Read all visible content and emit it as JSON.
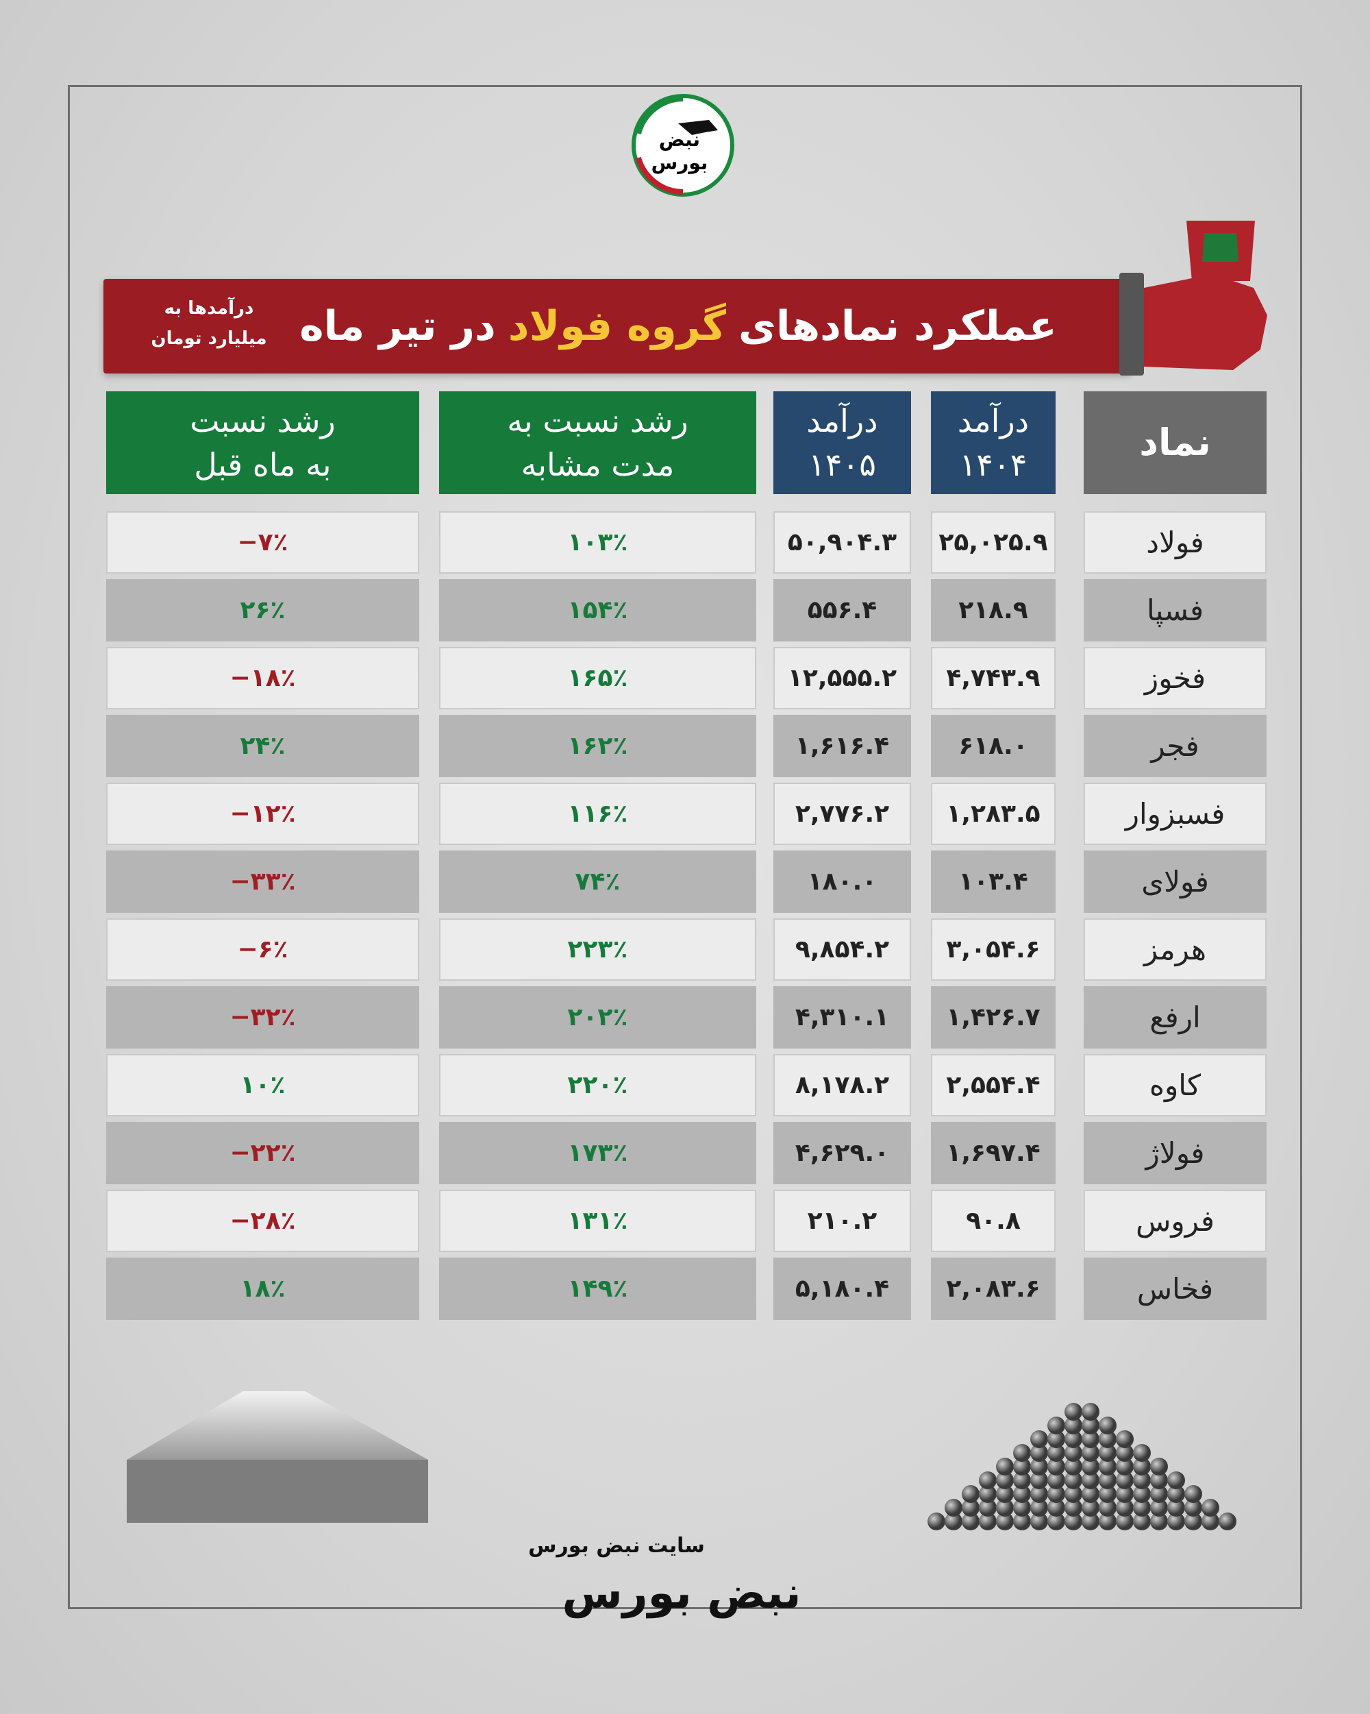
{
  "header": {
    "title_parts": [
      "عملکرد نمادهای",
      "گروه فولاد",
      "در تیر ماه"
    ],
    "note": [
      "درآمدها به",
      "میلیارد تومان"
    ]
  },
  "table": {
    "columns": [
      [
        "نماد"
      ],
      [
        "درآمد",
        "۱۴۰۴"
      ],
      [
        "درآمد",
        "۱۴۰۵"
      ],
      [
        "رشد نسبت به",
        "مدت مشابه"
      ],
      [
        "رشد نسبت",
        "به ماه قبل"
      ]
    ],
    "rows": [
      [
        "فولاد",
        "۲۵,۰۲۵.۹",
        "۵۰,۹۰۴.۳",
        "۱۰۳٪",
        "−۷٪"
      ],
      [
        "فسپا",
        "۲۱۸.۹",
        "۵۵۶.۴",
        "۱۵۴٪",
        "۲۶٪"
      ],
      [
        "فخوز",
        "۴,۷۴۳.۹",
        "۱۲,۵۵۵.۲",
        "۱۶۵٪",
        "−۱۸٪"
      ],
      [
        "فجر",
        "۶۱۸.۰",
        "۱,۶۱۶.۴",
        "۱۶۲٪",
        "۲۴٪"
      ],
      [
        "فسبزوار",
        "۱,۲۸۳.۵",
        "۲,۷۷۶.۲",
        "۱۱۶٪",
        "−۱۲٪"
      ],
      [
        "فولای",
        "۱۰۳.۴",
        "۱۸۰.۰",
        "۷۴٪",
        "−۳۳٪"
      ],
      [
        "هرمز",
        "۳,۰۵۴.۶",
        "۹,۸۵۴.۲",
        "۲۲۳٪",
        "−۶٪"
      ],
      [
        "ارفع",
        "۱,۴۲۶.۷",
        "۴,۳۱۰.۱",
        "۲۰۲٪",
        "−۳۲٪"
      ],
      [
        "کاوه",
        "۲,۵۵۴.۴",
        "۸,۱۷۸.۲",
        "۲۲۰٪",
        "۱۰٪"
      ],
      [
        "فولاژ",
        "۱,۶۹۷.۴",
        "۴,۶۲۹.۰",
        "۱۷۳٪",
        "−۲۲٪"
      ],
      [
        "فروس",
        "۹۰.۸",
        "۲۱۰.۲",
        "۱۳۱٪",
        "−۲۸٪"
      ],
      [
        "فخاس",
        "۲,۰۸۳.۶",
        "۵,۱۸۰.۴",
        "۱۴۹٪",
        "۱۸٪"
      ]
    ]
  },
  "logo": {
    "top": "نبض",
    "bottom": "بورس"
  },
  "footer": {
    "site": "سایت نبض بورس",
    "brand": "نبض بورس"
  }
}
